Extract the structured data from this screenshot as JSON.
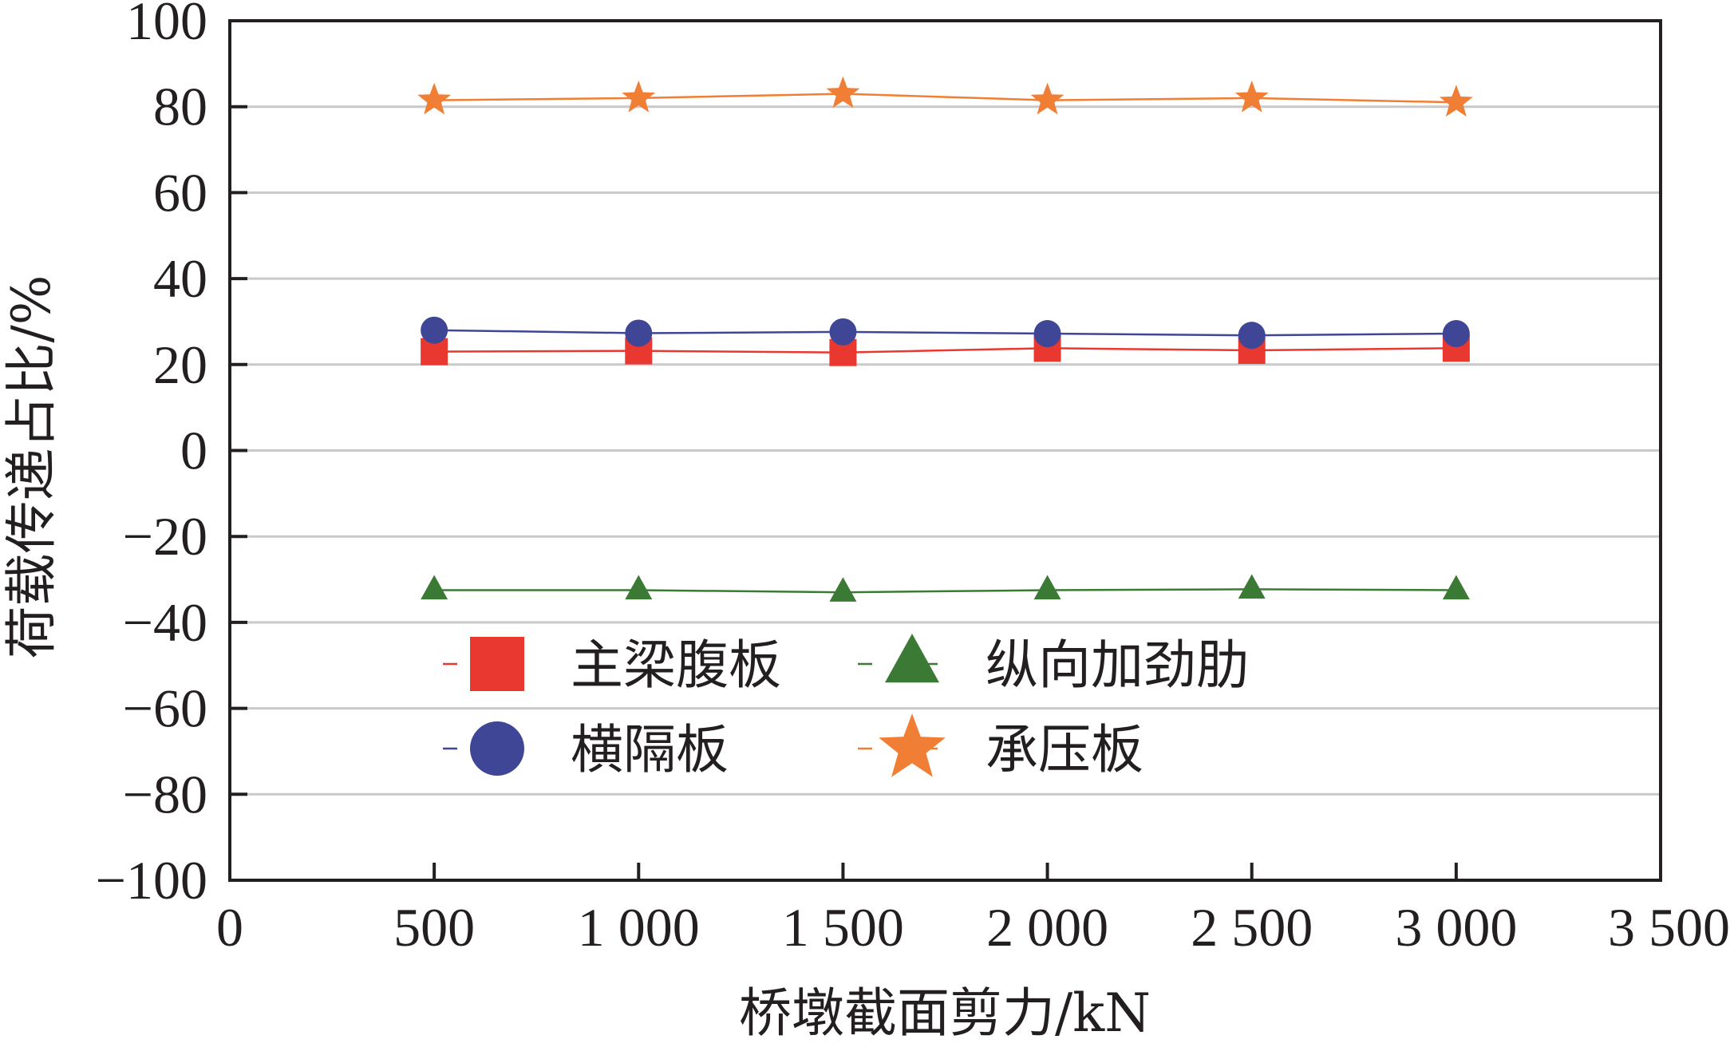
{
  "chart_data": {
    "type": "line",
    "title": "",
    "xlabel": "桥墩截面剪力/kN",
    "ylabel": "荷载传递占比/%",
    "xlim": [
      0,
      3500
    ],
    "ylim": [
      -100,
      100
    ],
    "x_ticks": [
      0,
      500,
      1000,
      1500,
      2000,
      2500,
      3000,
      3500
    ],
    "x_tick_labels": [
      "0",
      "500",
      "1 000",
      "1 500",
      "2 000",
      "2 500",
      "3 000",
      "3 500"
    ],
    "y_ticks": [
      -100,
      -80,
      -60,
      -40,
      -20,
      0,
      20,
      40,
      60,
      80,
      100
    ],
    "y_tick_labels": [
      "−100",
      "−80",
      "−60",
      "−40",
      "−20",
      "0",
      "20",
      "40",
      "60",
      "80",
      "100"
    ],
    "grid": "horizontal",
    "legend_position": "lower-left",
    "x": [
      500,
      1000,
      1500,
      2000,
      2500,
      3000
    ],
    "series": [
      {
        "name": "主梁腹板",
        "marker": "square",
        "color": "#e8382f",
        "values": [
          23,
          23.2,
          22.8,
          23.8,
          23.3,
          23.8
        ]
      },
      {
        "name": "纵向加劲肋",
        "marker": "triangle",
        "color": "#3b7a35",
        "values": [
          -32.5,
          -32.5,
          -33,
          -32.5,
          -32.3,
          -32.5
        ]
      },
      {
        "name": "横隔板",
        "marker": "circle",
        "color": "#3f4696",
        "values": [
          28,
          27.3,
          27.6,
          27.2,
          26.8,
          27.2
        ]
      },
      {
        "name": "承压板",
        "marker": "star",
        "color": "#f07f35",
        "values": [
          81.5,
          82,
          83,
          81.5,
          82,
          81
        ]
      }
    ]
  }
}
